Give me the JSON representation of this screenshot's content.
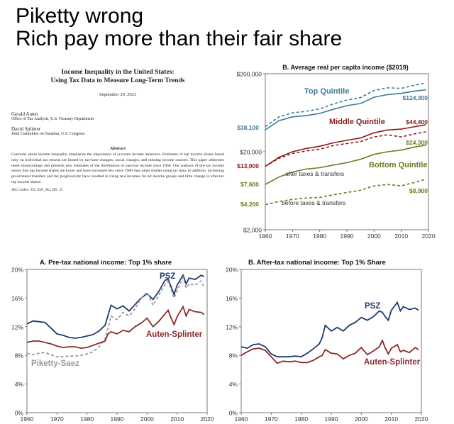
{
  "headline": {
    "line1": "Piketty wrong",
    "line2": "Rich pay more than their fair share"
  },
  "paper": {
    "title1": "Income Inequality in the United States:",
    "title2": "Using Tax Data to Measure Long-Term Trends",
    "date": "September 29, 2023",
    "author1": "Gerald Auten",
    "affiliation1": "Office of Tax Analysis, U.S. Treasury Department",
    "author2": "David Splinter",
    "affiliation2": "Joint Committee on Taxation, U.S. Congress",
    "abstract_heading": "Abstract",
    "abstract": "Concerns about income inequality emphasize the importance of accurate income measures. Estimates of top income shares based only on individual tax returns are biased by tax-base changes, social changes, and missing income sources. This paper addresses these shortcomings and presents new estimates of the distribution of national income since 1960. Our analysis of pre-tax income shows that top income shares are lower and have increased less since 1980 than other studies using tax data. In addition, increasing government transfers and tax progressivity have resulted in rising real incomes for all income groups and little change in after-tax top income shares.",
    "jel": "JEL Codes: D3, E01, H2, H5, J3"
  },
  "chart_data": [
    {
      "type": "line",
      "title": "B. Average real per capita income ($2019)",
      "yscale": "log",
      "ylim": [
        2000,
        200000
      ],
      "xlim": [
        1960,
        2020
      ],
      "yticks": [
        "$2,000",
        "$20,000",
        "$200,000"
      ],
      "ytick_values": [
        2000,
        20000,
        200000
      ],
      "xticks": [
        1960,
        1970,
        1980,
        1990,
        2000,
        2010,
        2020
      ],
      "grid": false,
      "series": [
        {
          "name": "Top Quintile",
          "style": "solid",
          "color": "#3d7a99",
          "x": [
            1960,
            1965,
            1970,
            1975,
            1980,
            1985,
            1990,
            1995,
            2000,
            2005,
            2010,
            2015,
            2019
          ],
          "y": [
            38100,
            50000,
            56000,
            58000,
            62000,
            70000,
            78000,
            83000,
            100000,
            108000,
            112000,
            120000,
            124300
          ]
        },
        {
          "style": "dashed",
          "color": "#3d7a99",
          "x": [
            1960,
            1965,
            1970,
            1975,
            1980,
            1985,
            1990,
            1995,
            2000,
            2005,
            2010,
            2015,
            2019
          ],
          "y": [
            42000,
            56000,
            63000,
            66000,
            71000,
            82000,
            92000,
            99000,
            122000,
            132000,
            130000,
            143000,
            152000
          ]
        },
        {
          "name": "Middle Quintile",
          "style": "solid",
          "color": "#8b1a1a",
          "x": [
            1960,
            1965,
            1970,
            1975,
            1980,
            1985,
            1990,
            1995,
            2000,
            2005,
            2010,
            2015,
            2019
          ],
          "y": [
            13000,
            17000,
            20000,
            22000,
            23500,
            26000,
            28000,
            30000,
            35000,
            38000,
            39000,
            42000,
            44400
          ]
        },
        {
          "style": "dashed",
          "color": "#8b1a1a",
          "x": [
            1960,
            1965,
            1970,
            1975,
            1980,
            1985,
            1990,
            1995,
            2000,
            2005,
            2010,
            2015,
            2019
          ],
          "y": [
            13000,
            16500,
            19000,
            20500,
            21500,
            24000,
            25500,
            27000,
            31000,
            33000,
            31000,
            34000,
            36000
          ]
        },
        {
          "name": "Bottom Quintile",
          "style": "solid",
          "color": "#6b7d1f",
          "x": [
            1960,
            1965,
            1970,
            1975,
            1980,
            1985,
            1990,
            1995,
            2000,
            2005,
            2010,
            2015,
            2019
          ],
          "y": [
            7600,
            9500,
            11000,
            12000,
            12500,
            13500,
            14500,
            16000,
            18500,
            20000,
            21000,
            23000,
            24300
          ]
        },
        {
          "style": "dashed",
          "color": "#6b7d1f",
          "x": [
            1960,
            1965,
            1970,
            1975,
            1980,
            1985,
            1990,
            1995,
            2000,
            2005,
            2010,
            2015,
            2019
          ],
          "y": [
            4200,
            4600,
            4900,
            5100,
            5200,
            5600,
            6000,
            6400,
            7300,
            7600,
            7300,
            8100,
            8900
          ]
        }
      ],
      "annotations": {
        "top_label": "Top Quintile",
        "middle_label": "Middle Quintile",
        "bottom_label": "Bottom Quintile",
        "after_label": "after taxes & transfers",
        "before_label": "before taxes & transfers",
        "start_values": [
          "$38,100",
          "$13,000",
          "$7,600",
          "$4,200"
        ],
        "end_values": [
          "$124,300",
          "$44,400",
          "$24,300",
          "$8,900"
        ]
      }
    },
    {
      "type": "line",
      "title": "A. Pre-tax national income: Top 1% share",
      "ylim": [
        0,
        20
      ],
      "xlim": [
        1960,
        2020
      ],
      "yticks": [
        "0%",
        "4%",
        "8%",
        "12%",
        "16%",
        "20%"
      ],
      "ytick_values": [
        0,
        4,
        8,
        12,
        16,
        20
      ],
      "xticks": [
        1960,
        1970,
        1980,
        1990,
        2000,
        2010,
        2020
      ],
      "grid": false,
      "series": [
        {
          "name": "PSZ",
          "style": "solid",
          "color": "#1f3a6e",
          "x": [
            1960,
            1962,
            1964,
            1966,
            1968,
            1970,
            1972,
            1974,
            1976,
            1978,
            1980,
            1982,
            1984,
            1986,
            1987,
            1988,
            1990,
            1992,
            1994,
            1996,
            1998,
            2000,
            2002,
            2004,
            2006,
            2007,
            2008,
            2009,
            2010,
            2012,
            2013,
            2014,
            2016,
            2018,
            2019
          ],
          "y": [
            12.4,
            12.8,
            12.7,
            12.6,
            11.8,
            11.0,
            10.8,
            10.5,
            10.4,
            10.5,
            10.7,
            10.9,
            11.4,
            12.2,
            13.6,
            15.0,
            14.5,
            14.9,
            14.2,
            15.1,
            16.0,
            16.6,
            15.8,
            17.0,
            18.5,
            18.6,
            17.6,
            16.5,
            17.8,
            19.2,
            18.0,
            18.8,
            18.6,
            19.2,
            19.0
          ]
        },
        {
          "name": "Piketty-Saez",
          "style": "dashed",
          "color": "#999999",
          "x": [
            1960,
            1962,
            1964,
            1966,
            1968,
            1970,
            1972,
            1974,
            1976,
            1978,
            1980,
            1982,
            1984,
            1986,
            1987,
            1988,
            1990,
            1992,
            1994,
            1996,
            1998,
            2000,
            2002,
            2004,
            2006,
            2007,
            2008,
            2009,
            2010,
            2012,
            2013,
            2014,
            2016,
            2018,
            2019
          ],
          "y": [
            8.3,
            8.1,
            8.3,
            8.4,
            8.1,
            7.8,
            7.8,
            7.9,
            7.9,
            8.0,
            8.2,
            8.5,
            9.2,
            10.3,
            11.8,
            13.5,
            13.0,
            14.0,
            13.5,
            14.5,
            16.0,
            16.8,
            15.0,
            16.5,
            17.9,
            18.3,
            17.2,
            16.0,
            17.0,
            18.9,
            17.4,
            18.0,
            17.8,
            18.4,
            17.5
          ]
        },
        {
          "name": "Auten-Splinter",
          "style": "solid",
          "color": "#8b2a2a",
          "x": [
            1960,
            1962,
            1964,
            1966,
            1968,
            1970,
            1972,
            1974,
            1976,
            1978,
            1980,
            1982,
            1984,
            1986,
            1987,
            1988,
            1990,
            1992,
            1994,
            1996,
            1998,
            2000,
            2002,
            2004,
            2006,
            2007,
            2008,
            2009,
            2010,
            2012,
            2013,
            2014,
            2016,
            2018,
            2019
          ],
          "y": [
            9.8,
            10.0,
            10.0,
            9.8,
            9.6,
            9.3,
            9.1,
            9.2,
            9.2,
            9.0,
            9.1,
            9.4,
            9.7,
            10.0,
            11.0,
            11.3,
            11.0,
            11.5,
            11.3,
            12.0,
            12.5,
            13.2,
            12.0,
            12.8,
            13.8,
            14.3,
            13.2,
            12.3,
            13.4,
            14.8,
            13.5,
            14.4,
            14.1,
            14.0,
            13.7
          ]
        }
      ]
    },
    {
      "type": "line",
      "title": "B. After-tax national income: Top 1% Share",
      "ylim": [
        0,
        20
      ],
      "xlim": [
        1960,
        2020
      ],
      "yticks": [
        "0%",
        "4%",
        "8%",
        "12%",
        "16%",
        "20%"
      ],
      "ytick_values": [
        0,
        4,
        8,
        12,
        16,
        20
      ],
      "xticks": [
        1960,
        1970,
        1980,
        1990,
        2000,
        2010,
        2020
      ],
      "grid": false,
      "series": [
        {
          "name": "PSZ",
          "style": "solid",
          "color": "#1f3a6e",
          "x": [
            1960,
            1962,
            1964,
            1966,
            1968,
            1970,
            1972,
            1974,
            1976,
            1978,
            1980,
            1982,
            1984,
            1986,
            1987,
            1988,
            1990,
            1992,
            1994,
            1996,
            1998,
            2000,
            2002,
            2004,
            2006,
            2007,
            2008,
            2009,
            2010,
            2012,
            2013,
            2014,
            2016,
            2018,
            2019
          ],
          "y": [
            9.2,
            9.0,
            9.5,
            9.6,
            9.2,
            8.2,
            7.8,
            7.8,
            7.8,
            7.9,
            7.8,
            8.3,
            8.9,
            9.6,
            10.5,
            12.2,
            11.4,
            11.9,
            11.4,
            12.2,
            12.6,
            13.3,
            12.9,
            13.4,
            14.2,
            14.0,
            13.4,
            12.9,
            14.3,
            15.4,
            14.2,
            14.8,
            14.4,
            14.6,
            14.3
          ]
        },
        {
          "name": "Auten-Splinter",
          "style": "solid",
          "color": "#8b2a2a",
          "x": [
            1960,
            1962,
            1964,
            1966,
            1968,
            1970,
            1972,
            1974,
            1976,
            1978,
            1980,
            1982,
            1984,
            1986,
            1987,
            1988,
            1990,
            1992,
            1994,
            1996,
            1998,
            2000,
            2002,
            2004,
            2006,
            2007,
            2008,
            2009,
            2010,
            2012,
            2013,
            2014,
            2016,
            2018,
            2019
          ],
          "y": [
            8.0,
            8.5,
            8.9,
            9.0,
            8.7,
            7.8,
            6.9,
            7.2,
            7.1,
            7.2,
            7.0,
            7.0,
            7.3,
            7.8,
            8.0,
            8.8,
            8.3,
            8.2,
            7.5,
            8.0,
            8.3,
            9.1,
            8.1,
            8.6,
            9.2,
            10.1,
            9.0,
            8.2,
            9.0,
            9.5,
            8.5,
            8.7,
            8.4,
            9.1,
            8.8
          ]
        }
      ]
    }
  ]
}
